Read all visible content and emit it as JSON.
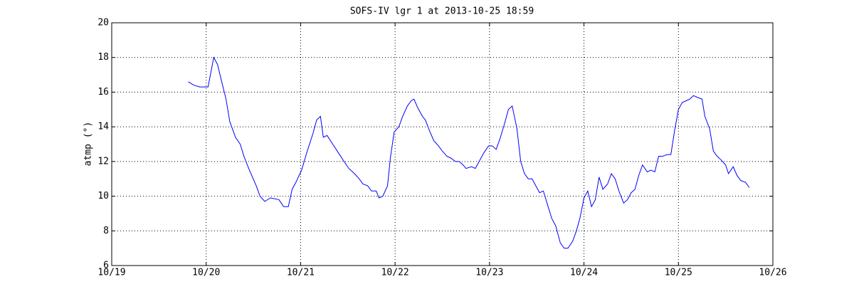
{
  "chart_data": {
    "type": "line",
    "title": "SOFS-IV lgr 1 at 2013-10-25 18:59",
    "y_label": "atmp (°)",
    "x": [
      19.81,
      19.87,
      19.93,
      20.02,
      20.08,
      20.12,
      20.16,
      20.21,
      20.25,
      20.31,
      20.36,
      20.4,
      20.45,
      20.53,
      20.57,
      20.62,
      20.68,
      20.77,
      20.82,
      20.87,
      20.91,
      20.95,
      21.01,
      21.07,
      21.13,
      21.17,
      21.21,
      21.24,
      21.28,
      21.34,
      21.4,
      21.46,
      21.51,
      21.57,
      21.62,
      21.66,
      21.71,
      21.75,
      21.8,
      21.83,
      21.87,
      21.92,
      21.95,
      21.99,
      22.04,
      22.08,
      22.13,
      22.17,
      22.2,
      22.24,
      22.29,
      22.32,
      22.37,
      22.41,
      22.46,
      22.5,
      22.55,
      22.59,
      22.64,
      22.68,
      22.72,
      22.75,
      22.81,
      22.85,
      22.9,
      22.94,
      22.99,
      23.03,
      23.07,
      23.11,
      23.16,
      23.2,
      23.24,
      23.29,
      23.33,
      23.37,
      23.41,
      23.45,
      23.49,
      23.53,
      23.57,
      23.62,
      23.66,
      23.7,
      23.75,
      23.79,
      23.83,
      23.88,
      23.92,
      23.96,
      24.0,
      24.04,
      24.08,
      24.12,
      24.16,
      24.2,
      24.25,
      24.29,
      24.33,
      24.37,
      24.42,
      24.46,
      24.5,
      24.54,
      24.58,
      24.62,
      24.67,
      24.71,
      24.75,
      24.79,
      24.83,
      24.88,
      24.92,
      24.96,
      25.0,
      25.04,
      25.08,
      25.12,
      25.16,
      25.2,
      25.25,
      25.28,
      25.33,
      25.37,
      25.41,
      25.45,
      25.5,
      25.53,
      25.58,
      25.62,
      25.66,
      25.71,
      25.75
    ],
    "series": [
      {
        "name": "atmp",
        "color": "#0000ff",
        "values": [
          16.6,
          16.4,
          16.3,
          16.3,
          18.0,
          17.6,
          16.7,
          15.6,
          14.3,
          13.4,
          13.0,
          12.3,
          11.6,
          10.6,
          10.0,
          9.7,
          9.9,
          9.8,
          9.4,
          9.4,
          10.4,
          10.8,
          11.5,
          12.6,
          13.6,
          14.4,
          14.6,
          13.4,
          13.5,
          13.0,
          12.5,
          12.0,
          11.6,
          11.3,
          11.0,
          10.7,
          10.6,
          10.3,
          10.3,
          9.9,
          10.0,
          10.6,
          12.2,
          13.7,
          14.0,
          14.6,
          15.2,
          15.5,
          15.6,
          15.1,
          14.6,
          14.4,
          13.7,
          13.2,
          12.9,
          12.6,
          12.3,
          12.2,
          12.0,
          12.0,
          11.8,
          11.6,
          11.7,
          11.6,
          12.1,
          12.5,
          12.9,
          12.9,
          12.7,
          13.3,
          14.2,
          15.0,
          15.2,
          13.9,
          12.0,
          11.3,
          11.0,
          11.0,
          10.6,
          10.2,
          10.3,
          9.4,
          8.7,
          8.3,
          7.3,
          7.0,
          7.0,
          7.4,
          8.0,
          8.8,
          9.9,
          10.3,
          9.4,
          9.8,
          11.1,
          10.4,
          10.7,
          11.3,
          11.0,
          10.3,
          9.6,
          9.8,
          10.2,
          10.4,
          11.2,
          11.8,
          11.4,
          11.5,
          11.4,
          12.3,
          12.3,
          12.4,
          12.4,
          13.8,
          15.0,
          15.4,
          15.5,
          15.6,
          15.8,
          15.7,
          15.6,
          14.6,
          13.9,
          12.6,
          12.3,
          12.1,
          11.8,
          11.3,
          11.7,
          11.2,
          10.9,
          10.8,
          10.5
        ]
      }
    ],
    "xlim": [
      19,
      26
    ],
    "xticks": [
      {
        "value": 19,
        "label": "10/19"
      },
      {
        "value": 20,
        "label": "10/20"
      },
      {
        "value": 21,
        "label": "10/21"
      },
      {
        "value": 22,
        "label": "10/22"
      },
      {
        "value": 23,
        "label": "10/23"
      },
      {
        "value": 24,
        "label": "10/24"
      },
      {
        "value": 25,
        "label": "10/25"
      },
      {
        "value": 26,
        "label": "10/26"
      }
    ],
    "ylim": [
      6,
      20
    ],
    "yticks": [
      6,
      8,
      10,
      12,
      14,
      16,
      18,
      20
    ],
    "grid": true
  }
}
